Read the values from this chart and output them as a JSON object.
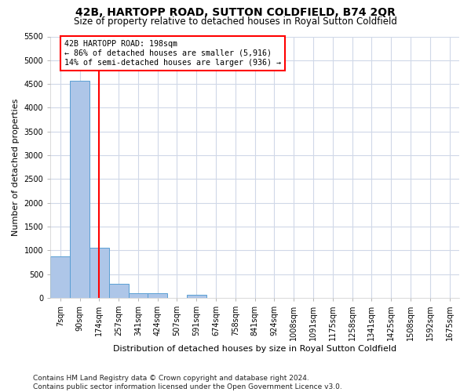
{
  "title": "42B, HARTOPP ROAD, SUTTON COLDFIELD, B74 2QR",
  "subtitle": "Size of property relative to detached houses in Royal Sutton Coldfield",
  "xlabel": "Distribution of detached houses by size in Royal Sutton Coldfield",
  "ylabel": "Number of detached properties",
  "footnote1": "Contains HM Land Registry data © Crown copyright and database right 2024.",
  "footnote2": "Contains public sector information licensed under the Open Government Licence v3.0.",
  "bar_labels": [
    "7sqm",
    "90sqm",
    "174sqm",
    "257sqm",
    "341sqm",
    "424sqm",
    "507sqm",
    "591sqm",
    "674sqm",
    "758sqm",
    "841sqm",
    "924sqm",
    "1008sqm",
    "1091sqm",
    "1175sqm",
    "1258sqm",
    "1341sqm",
    "1425sqm",
    "1508sqm",
    "1592sqm",
    "1675sqm"
  ],
  "bar_values": [
    870,
    4560,
    1060,
    290,
    90,
    90,
    0,
    70,
    0,
    0,
    0,
    0,
    0,
    0,
    0,
    0,
    0,
    0,
    0,
    0,
    0
  ],
  "bar_color": "#aec6e8",
  "bar_edge_color": "#5a9fd4",
  "red_line_x": 2,
  "annotation_title": "42B HARTOPP ROAD: 198sqm",
  "annotation_line1": "← 86% of detached houses are smaller (5,916)",
  "annotation_line2": "14% of semi-detached houses are larger (936) →",
  "ylim": [
    0,
    5500
  ],
  "yticks": [
    0,
    500,
    1000,
    1500,
    2000,
    2500,
    3000,
    3500,
    4000,
    4500,
    5000,
    5500
  ],
  "background_color": "#ffffff",
  "grid_color": "#d0d8e8",
  "title_fontsize": 10,
  "subtitle_fontsize": 8.5,
  "ylabel_fontsize": 8,
  "xlabel_fontsize": 8,
  "tick_fontsize": 7,
  "footnote_fontsize": 6.5
}
